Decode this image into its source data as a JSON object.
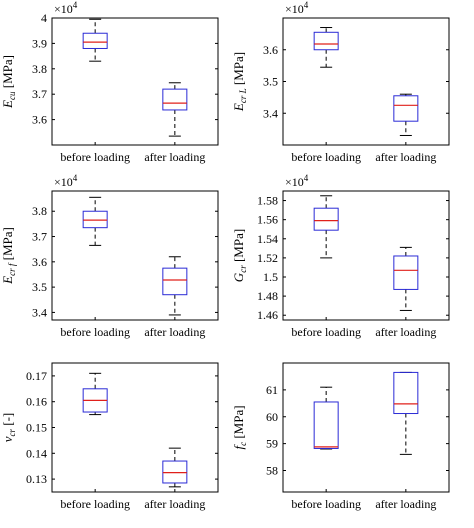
{
  "chart_data": [
    {
      "type": "box",
      "ylabel": {
        "sym": "E",
        "sub": "cu",
        "unit": "[MPa]"
      },
      "exponent": "×10^4",
      "ylim": [
        3.5,
        4.0
      ],
      "yticks": [
        "4",
        "3.9",
        "3.8",
        "3.7",
        "3.6"
      ],
      "ytick_values": [
        4.0,
        3.9,
        3.8,
        3.7,
        3.6
      ],
      "categories": [
        "before loading",
        "after loading"
      ],
      "boxes": [
        {
          "min": 3.83,
          "q1": 3.88,
          "median": 3.905,
          "q3": 3.94,
          "max": 3.995
        },
        {
          "min": 3.535,
          "q1": 3.638,
          "median": 3.665,
          "q3": 3.72,
          "max": 3.745
        }
      ]
    },
    {
      "type": "box",
      "ylabel": {
        "sym": "E",
        "sub": "cr L",
        "unit": "[MPa]"
      },
      "exponent": "×10^4",
      "ylim": [
        3.3,
        3.7
      ],
      "yticks": [
        "3.6",
        "3.5",
        "3.4"
      ],
      "ytick_values": [
        3.6,
        3.5,
        3.4
      ],
      "categories": [
        "before loading",
        "after loading"
      ],
      "boxes": [
        {
          "min": 3.545,
          "q1": 3.6,
          "median": 3.618,
          "q3": 3.655,
          "max": 3.67
        },
        {
          "min": 3.33,
          "q1": 3.375,
          "median": 3.425,
          "q3": 3.455,
          "max": 3.46
        }
      ]
    },
    {
      "type": "box",
      "ylabel": {
        "sym": "E",
        "sub": "cr f",
        "unit": "[MPa]"
      },
      "exponent": "×10^4",
      "ylim": [
        3.37,
        3.88
      ],
      "yticks": [
        "3.8",
        "3.7",
        "3.6",
        "3.5",
        "3.4"
      ],
      "ytick_values": [
        3.8,
        3.7,
        3.6,
        3.5,
        3.4
      ],
      "categories": [
        "before loading",
        "after loading"
      ],
      "boxes": [
        {
          "min": 3.665,
          "q1": 3.735,
          "median": 3.765,
          "q3": 3.8,
          "max": 3.855
        },
        {
          "min": 3.39,
          "q1": 3.47,
          "median": 3.528,
          "q3": 3.575,
          "max": 3.62
        }
      ]
    },
    {
      "type": "box",
      "ylabel": {
        "sym": "G",
        "sub": "cr",
        "unit": "[MPa]"
      },
      "exponent": "×10^4",
      "ylim": [
        1.455,
        1.59
      ],
      "yticks": [
        "1.58",
        "1.56",
        "1.54",
        "1.52",
        "1.5",
        "1.48",
        "1.46"
      ],
      "ytick_values": [
        1.58,
        1.56,
        1.54,
        1.52,
        1.5,
        1.48,
        1.46
      ],
      "categories": [
        "before loading",
        "after loading"
      ],
      "boxes": [
        {
          "min": 1.52,
          "q1": 1.549,
          "median": 1.559,
          "q3": 1.572,
          "max": 1.585
        },
        {
          "min": 1.465,
          "q1": 1.487,
          "median": 1.507,
          "q3": 1.522,
          "max": 1.531
        }
      ]
    },
    {
      "type": "box",
      "ylabel": {
        "sym": "ν",
        "sub": "cr",
        "unit": "[-]"
      },
      "exponent": "",
      "ylim": [
        0.125,
        0.175
      ],
      "yticks": [
        "0.17",
        "0.16",
        "0.15",
        "0.14",
        "0.13"
      ],
      "ytick_values": [
        0.17,
        0.16,
        0.15,
        0.14,
        0.13
      ],
      "categories": [
        "before loading",
        "after loading"
      ],
      "boxes": [
        {
          "min": 0.155,
          "q1": 0.156,
          "median": 0.1605,
          "q3": 0.165,
          "max": 0.171
        },
        {
          "min": 0.127,
          "q1": 0.1285,
          "median": 0.1325,
          "q3": 0.137,
          "max": 0.142
        }
      ]
    },
    {
      "type": "box",
      "ylabel": {
        "sym": "f",
        "sub": "c",
        "unit": "[MPa]"
      },
      "exponent": "",
      "ylim": [
        57.2,
        62.0
      ],
      "yticks": [
        "61",
        "60",
        "59",
        "58"
      ],
      "ytick_values": [
        61,
        60,
        59,
        58
      ],
      "categories": [
        "before loading",
        "after loading"
      ],
      "boxes": [
        {
          "min": 58.8,
          "q1": 58.82,
          "median": 58.88,
          "q3": 60.55,
          "max": 61.1
        },
        {
          "min": 58.6,
          "q1": 60.12,
          "median": 60.48,
          "q3": 61.65,
          "max": 61.65
        }
      ]
    }
  ]
}
